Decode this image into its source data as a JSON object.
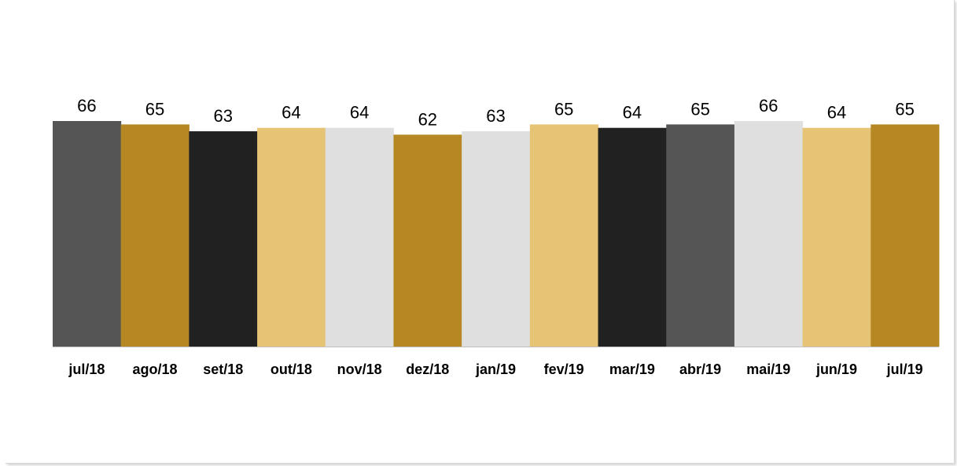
{
  "chart_data": {
    "type": "bar",
    "categories": [
      "jul/18",
      "ago/18",
      "set/18",
      "out/18",
      "nov/18",
      "dez/18",
      "jan/19",
      "fev/19",
      "mar/19",
      "abr/19",
      "mai/19",
      "jun/19",
      "jul/19"
    ],
    "values": [
      66,
      65,
      63,
      64,
      64,
      62,
      63,
      65,
      64,
      65,
      66,
      64,
      65
    ],
    "bar_colors": [
      "#555555",
      "#b58823",
      "#212121",
      "#e7c475",
      "#dfdfdf",
      "#b58823",
      "#dfdfdf",
      "#e7c475",
      "#212121",
      "#555555",
      "#dfdfdf",
      "#e7c475",
      "#b58823"
    ],
    "ylim": [
      0,
      66
    ],
    "grid": false,
    "legend": "none",
    "data_labels": true,
    "axis_color": "#bfbfbf"
  }
}
